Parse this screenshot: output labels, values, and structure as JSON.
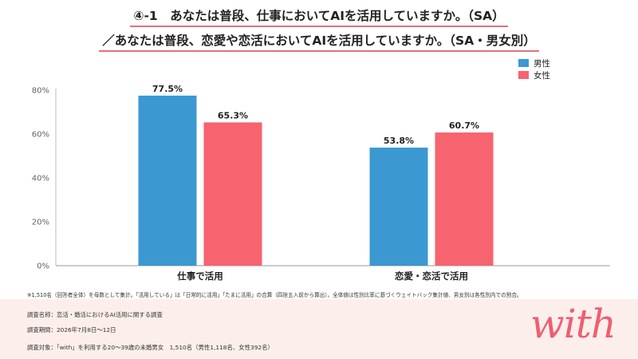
{
  "title": {
    "line1": "④-1　あなたは普段、仕事においてAIを活用していますか。（SA）",
    "line2": "／あなたは普段、恋愛や恋活においてAIを活用していますか。（SA・男女別）"
  },
  "chart_data": {
    "type": "bar",
    "categories": [
      "仕事で活用",
      "恋愛・恋活で活用"
    ],
    "series": [
      {
        "name": "男性",
        "values": [
          77.5,
          53.8
        ],
        "color": "#3b98d1"
      },
      {
        "name": "女性",
        "values": [
          65.3,
          60.7
        ],
        "color": "#f7636e"
      }
    ],
    "value_labels": [
      [
        "77.5%",
        "53.8%"
      ],
      [
        "65.3%",
        "60.7%"
      ]
    ],
    "yticks": [
      "0%",
      "20%",
      "40%",
      "60%",
      "80%"
    ],
    "ylim": [
      0,
      80
    ],
    "grid": false,
    "legend": "top-right"
  },
  "note": "※1,510名（回答者全体）を母数として集計。「活用している」は「日常的に活用」「たまに活用」の合算（四捨五入前から算出）。全体値は性別比率に基づくウェイトバック集計値、男女別は各性別内での割合。",
  "footer": {
    "survey_name": "調査名称：恋活・婚活におけるAI活用に関する調査",
    "survey_period": "調査期間：2026年7月8日〜12日",
    "survey_target": "調査対象：「with」を利用する20〜39歳の未婚男女　1,510名（男性1,118名、女性392名）",
    "logo": "with"
  }
}
